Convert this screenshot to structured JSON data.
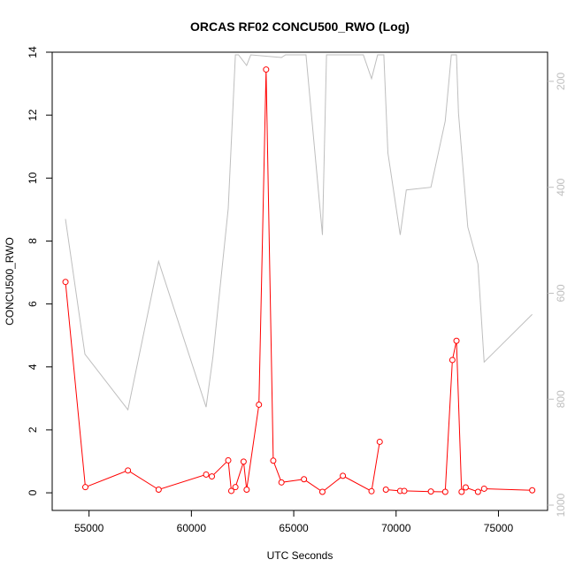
{
  "chart_data": {
    "type": "line",
    "title": "ORCAS RF02 CONCU500_RWO (Log)",
    "xlabel": "UTC Seconds",
    "ylabel": "CONCU500_RWO",
    "xlim": [
      53200,
      77400
    ],
    "ylim": [
      -0.56,
      14.0
    ],
    "x_ticks": [
      55000,
      60000,
      65000,
      70000,
      75000
    ],
    "y_ticks": [
      0,
      2,
      4,
      6,
      8,
      10,
      12,
      14
    ],
    "y2_ticks": [
      200,
      400,
      600,
      800,
      1000
    ],
    "y2lim": [
      1010,
      145
    ],
    "y2_reversed": true,
    "colors": {
      "primary": "#ff0000",
      "secondary": "#bebebe"
    },
    "series": [
      {
        "axis": "left",
        "color": "#ff0000",
        "markers": true,
        "x": [
          53850,
          54820,
          56900,
          58400,
          60720,
          61000,
          61800,
          61950,
          62150,
          62550,
          62700,
          63300,
          63650,
          64000,
          64400,
          65500,
          66400,
          67400,
          68800,
          69200,
          69500,
          70200,
          70400,
          71700,
          72400,
          72750,
          72950,
          73200,
          73400,
          74000,
          74300,
          76650
        ],
        "y": [
          6.7,
          0.18,
          0.71,
          0.1,
          0.58,
          0.52,
          1.03,
          0.06,
          0.18,
          0.99,
          0.1,
          2.8,
          13.45,
          1.02,
          0.33,
          0.43,
          0.03,
          0.54,
          0.05,
          1.62,
          0.1,
          0.06,
          0.06,
          0.04,
          0.03,
          4.22,
          4.83,
          0.03,
          0.17,
          0.03,
          0.13,
          0.08
        ],
        "gaps_after_index": [
          19,
          27
        ]
      },
      {
        "axis": "right",
        "color": "#bebebe",
        "markers": false,
        "x": [
          53850,
          54800,
          56900,
          58400,
          60720,
          61050,
          61800,
          62150,
          62300,
          62700,
          62900,
          64400,
          64600,
          65600,
          66400,
          66600,
          67900,
          68400,
          68800,
          69100,
          69400,
          69600,
          70200,
          70500,
          71700,
          72400,
          72700,
          72950,
          73050,
          73500,
          74000,
          74300,
          76650
        ],
        "y": [
          460,
          715,
          820,
          540,
          815,
          720,
          440,
          150,
          150,
          170,
          150,
          155,
          150,
          150,
          490,
          150,
          150,
          150,
          195,
          150,
          150,
          335,
          490,
          405,
          400,
          275,
          150,
          150,
          260,
          475,
          545,
          730,
          640
        ]
      }
    ]
  }
}
